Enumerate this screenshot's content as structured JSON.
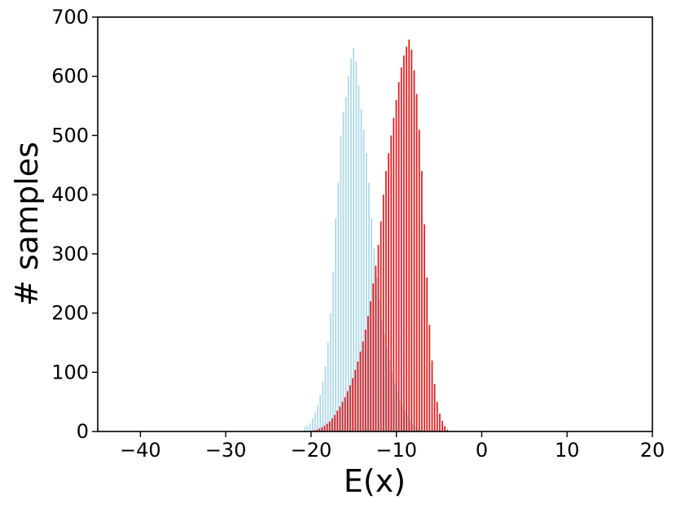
{
  "chart_data": {
    "type": "bar",
    "subtype": "overlaid-histogram",
    "title": "",
    "xlabel": "E(x)",
    "ylabel": "# samples",
    "xlim": [
      -45,
      20
    ],
    "ylim": [
      0,
      700
    ],
    "x_ticks": [
      -40,
      -30,
      -20,
      -10,
      0,
      10,
      20
    ],
    "x_tick_labels": [
      "−40",
      "−30",
      "−20",
      "−10",
      "0",
      "10",
      "20"
    ],
    "y_ticks": [
      0,
      100,
      200,
      300,
      400,
      500,
      600,
      700
    ],
    "y_tick_labels": [
      "0",
      "100",
      "200",
      "300",
      "400",
      "500",
      "600",
      "700"
    ],
    "grid": false,
    "legend": null,
    "series": [
      {
        "color": "#add8e6",
        "bin_width": 0.3,
        "x": [
          -20.8,
          -20.5,
          -20.2,
          -19.9,
          -19.6,
          -19.3,
          -19.0,
          -18.7,
          -18.4,
          -18.1,
          -17.8,
          -17.5,
          -17.2,
          -16.9,
          -16.6,
          -16.3,
          -16.0,
          -15.7,
          -15.4,
          -15.1,
          -14.8,
          -14.5,
          -14.2,
          -13.9,
          -13.6,
          -13.3,
          -13.0,
          -12.7,
          -12.4,
          -12.1,
          -11.8,
          -11.5,
          -11.2,
          -10.9,
          -10.6,
          -10.3,
          -10.0,
          -9.7,
          -9.4,
          -9.1,
          -8.8,
          -8.5,
          -8.2,
          -7.9,
          -7.6,
          -7.3
        ],
        "values": [
          8,
          10,
          14,
          22,
          32,
          45,
          62,
          85,
          110,
          150,
          200,
          270,
          360,
          420,
          500,
          540,
          565,
          600,
          630,
          648,
          625,
          585,
          545,
          510,
          470,
          420,
          360,
          310,
          260,
          220,
          190,
          165,
          140,
          120,
          100,
          82,
          68,
          55,
          44,
          35,
          27,
          20,
          14,
          9,
          5,
          3
        ]
      },
      {
        "color": "#e41a1c",
        "bin_width": 0.3,
        "x": [
          -20.0,
          -19.7,
          -19.4,
          -19.1,
          -18.8,
          -18.5,
          -18.2,
          -17.9,
          -17.6,
          -17.3,
          -17.0,
          -16.7,
          -16.4,
          -16.1,
          -15.8,
          -15.5,
          -15.2,
          -14.9,
          -14.6,
          -14.3,
          -14.0,
          -13.7,
          -13.4,
          -13.1,
          -12.8,
          -12.5,
          -12.2,
          -11.9,
          -11.6,
          -11.3,
          -11.0,
          -10.7,
          -10.4,
          -10.1,
          -9.8,
          -9.5,
          -9.2,
          -8.9,
          -8.6,
          -8.3,
          -8.0,
          -7.7,
          -7.4,
          -7.1,
          -6.8,
          -6.5,
          -6.2,
          -5.9,
          -5.6,
          -5.3,
          -5.0,
          -4.7,
          -4.4,
          -4.1
        ],
        "values": [
          1,
          2,
          3,
          5,
          7,
          10,
          13,
          17,
          22,
          28,
          35,
          42,
          50,
          58,
          68,
          78,
          90,
          104,
          118,
          135,
          152,
          172,
          195,
          220,
          250,
          280,
          315,
          355,
          400,
          440,
          470,
          500,
          530,
          560,
          590,
          615,
          635,
          650,
          662,
          645,
          610,
          570,
          510,
          440,
          350,
          260,
          180,
          120,
          80,
          50,
          30,
          18,
          9,
          3
        ]
      }
    ]
  }
}
